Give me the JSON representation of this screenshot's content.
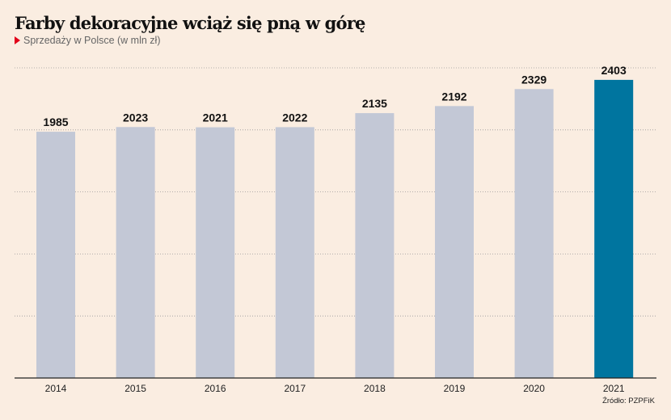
{
  "chart_data": {
    "type": "bar",
    "title": "Farby dekoracyjne wciąż się pną w górę",
    "subtitle": "Sprzedaży w Polsce (w mln zł)",
    "categories": [
      "2014",
      "2015",
      "2016",
      "2017",
      "2018",
      "2019",
      "2020",
      "2021"
    ],
    "values": [
      1985,
      2023,
      2021,
      2022,
      2135,
      2192,
      2329,
      2403
    ],
    "highlight_index": 7,
    "ylim": [
      0,
      2500
    ],
    "grid_step": 500,
    "grid": true,
    "xlabel": "",
    "ylabel": "",
    "source": "Źródło: PZPFiK",
    "colors": {
      "bar": "#c3c8d6",
      "highlight": "#00759f",
      "grid": "#999999",
      "axis": "#222222"
    }
  }
}
